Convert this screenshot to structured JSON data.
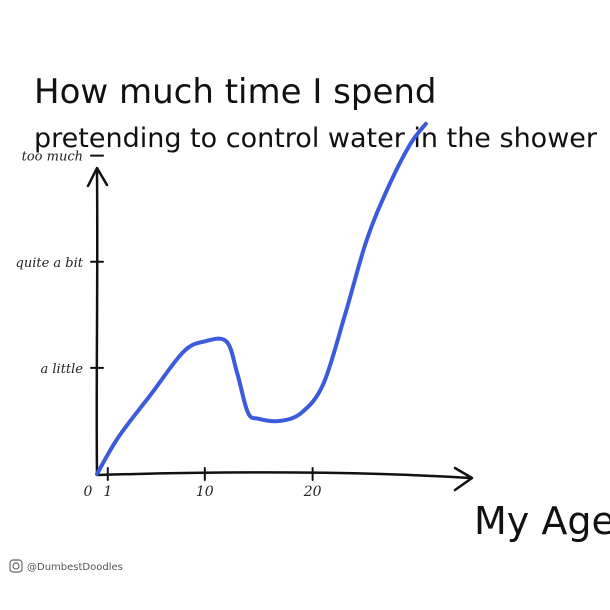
{
  "chart_data": {
    "type": "line",
    "title": "How much time I spend",
    "subtitle": "pretending to control water in the shower",
    "xlabel": "My Age",
    "ylabel": "",
    "x_ticks": [
      {
        "value": 0,
        "label": "0"
      },
      {
        "value": 1,
        "label": "1"
      },
      {
        "value": 10,
        "label": "10"
      },
      {
        "value": 20,
        "label": "20"
      }
    ],
    "y_ticks": [
      {
        "value": 1,
        "label": "a little"
      },
      {
        "value": 2,
        "label": "quite a bit"
      },
      {
        "value": 3,
        "label": "too much"
      }
    ],
    "xlim": [
      0,
      32
    ],
    "ylim": [
      0,
      3.6
    ],
    "series": [
      {
        "color": "#3b5bdb",
        "x": [
          0,
          2,
          5,
          8,
          10,
          12,
          13,
          14,
          15,
          17,
          19,
          21,
          23,
          25,
          27,
          29,
          30.5
        ],
        "y": [
          0,
          0.35,
          0.75,
          1.15,
          1.25,
          1.25,
          0.95,
          0.58,
          0.52,
          0.5,
          0.58,
          0.85,
          1.5,
          2.2,
          2.7,
          3.1,
          3.3
        ]
      }
    ]
  },
  "credit": "@DumbestDoodles"
}
